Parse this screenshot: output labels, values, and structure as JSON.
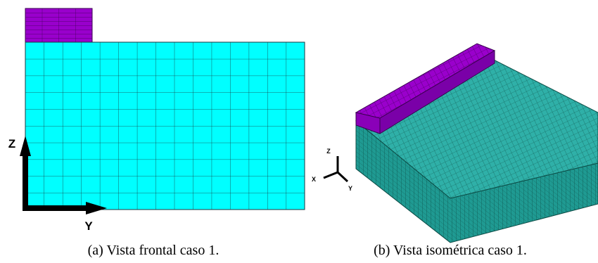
{
  "figure": {
    "panels": [
      {
        "caption": "(a) Vista frontal caso 1.",
        "axes": [
          "Z",
          "Y"
        ]
      },
      {
        "caption": "(b) Vista isométrica caso 1.",
        "axes": [
          "Z",
          "X",
          "Y"
        ]
      }
    ]
  }
}
